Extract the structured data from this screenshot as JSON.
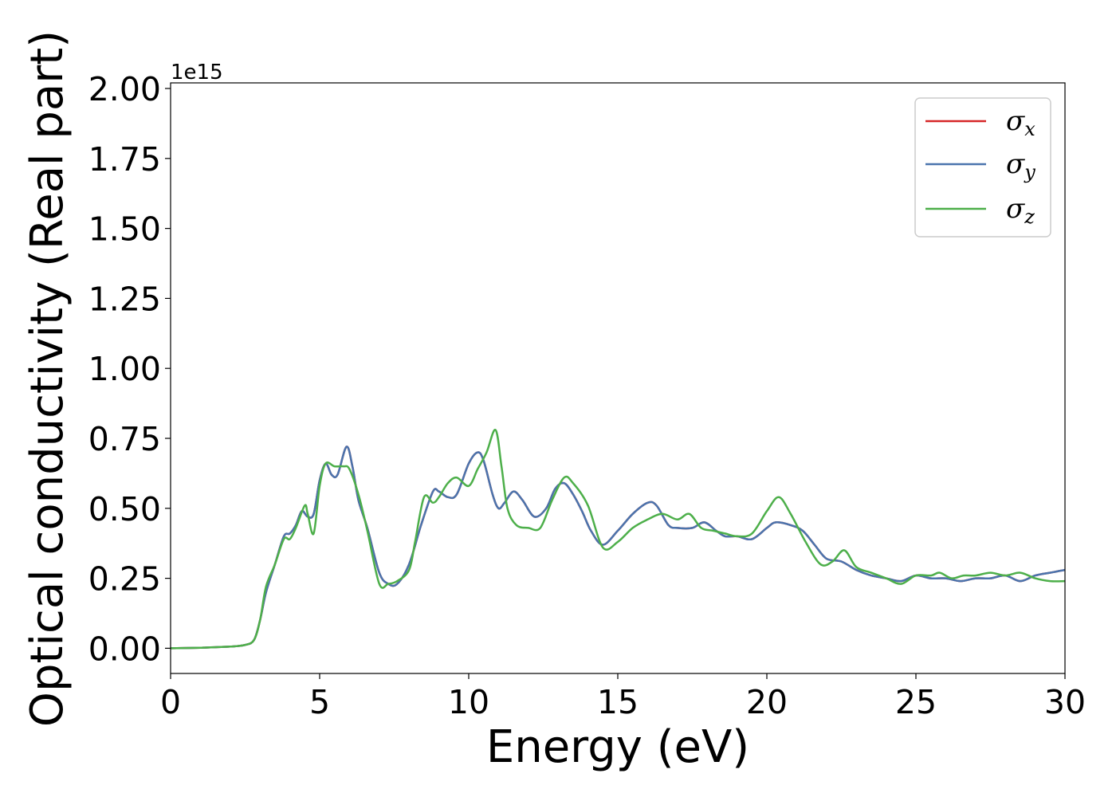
{
  "chart_data": {
    "type": "line",
    "xlabel": "Energy (eV)",
    "ylabel": "Optical conductivity (Real part)",
    "y_offset_label": "1e15",
    "xlim": [
      0,
      30
    ],
    "ylim": [
      -0.09,
      2.02
    ],
    "x_ticks": [
      0,
      5,
      10,
      15,
      20,
      25,
      30
    ],
    "x_tick_labels": [
      "0",
      "5",
      "10",
      "15",
      "20",
      "25",
      "30"
    ],
    "y_ticks": [
      0,
      0.25,
      0.5,
      0.75,
      1.0,
      1.25,
      1.5,
      1.75,
      2.0
    ],
    "y_tick_labels": [
      "0.00",
      "0.25",
      "0.50",
      "0.75",
      "1.00",
      "1.25",
      "1.50",
      "1.75",
      "2.00"
    ],
    "grid": false,
    "legend_position": "top-right",
    "series": [
      {
        "name": "σx",
        "legend_symbol": "σ",
        "legend_subscript": "x",
        "color": "#d62728",
        "x": [
          0,
          1,
          2,
          2.5,
          2.8,
          3.0,
          3.2,
          3.5,
          3.8,
          4.0,
          4.2,
          4.4,
          4.6,
          4.8,
          5.0,
          5.2,
          5.4,
          5.6,
          5.9,
          6.1,
          6.3,
          6.6,
          7.0,
          7.3,
          7.6,
          8.0,
          8.4,
          8.8,
          9.0,
          9.3,
          9.6,
          10.0,
          10.3,
          10.5,
          10.8,
          11.0,
          11.2,
          11.5,
          11.8,
          12.2,
          12.6,
          12.9,
          13.2,
          13.5,
          13.8,
          14.1,
          14.5,
          15.0,
          15.5,
          16.0,
          16.3,
          16.7,
          17.0,
          17.5,
          17.9,
          18.3,
          18.6,
          19.0,
          19.5,
          20.0,
          20.3,
          20.8,
          21.2,
          21.6,
          22.0,
          22.5,
          23.0,
          23.5,
          24.0,
          24.5,
          25.0,
          25.5,
          26.0,
          26.5,
          27.0,
          27.5,
          28.0,
          28.5,
          29.0,
          29.5,
          30.0
        ],
        "values": [
          0,
          0.002,
          0.006,
          0.012,
          0.03,
          0.1,
          0.2,
          0.3,
          0.4,
          0.41,
          0.44,
          0.49,
          0.47,
          0.48,
          0.6,
          0.66,
          0.62,
          0.62,
          0.72,
          0.65,
          0.53,
          0.43,
          0.27,
          0.23,
          0.23,
          0.3,
          0.44,
          0.56,
          0.56,
          0.54,
          0.55,
          0.66,
          0.7,
          0.67,
          0.55,
          0.5,
          0.52,
          0.56,
          0.53,
          0.47,
          0.5,
          0.57,
          0.59,
          0.55,
          0.49,
          0.42,
          0.37,
          0.42,
          0.48,
          0.52,
          0.51,
          0.44,
          0.43,
          0.43,
          0.45,
          0.42,
          0.4,
          0.4,
          0.39,
          0.43,
          0.45,
          0.44,
          0.42,
          0.37,
          0.32,
          0.31,
          0.28,
          0.26,
          0.25,
          0.24,
          0.26,
          0.25,
          0.25,
          0.24,
          0.25,
          0.25,
          0.26,
          0.24,
          0.26,
          0.27,
          0.28
        ]
      },
      {
        "name": "σy",
        "legend_symbol": "σ",
        "legend_subscript": "y",
        "color": "#4a74ad",
        "x": [
          0,
          1,
          2,
          2.5,
          2.8,
          3.0,
          3.2,
          3.5,
          3.8,
          4.0,
          4.2,
          4.4,
          4.6,
          4.8,
          5.0,
          5.2,
          5.4,
          5.6,
          5.9,
          6.1,
          6.3,
          6.6,
          7.0,
          7.3,
          7.6,
          8.0,
          8.4,
          8.8,
          9.0,
          9.3,
          9.6,
          10.0,
          10.3,
          10.5,
          10.8,
          11.0,
          11.2,
          11.5,
          11.8,
          12.2,
          12.6,
          12.9,
          13.2,
          13.5,
          13.8,
          14.1,
          14.5,
          15.0,
          15.5,
          16.0,
          16.3,
          16.7,
          17.0,
          17.5,
          17.9,
          18.3,
          18.6,
          19.0,
          19.5,
          20.0,
          20.3,
          20.8,
          21.2,
          21.6,
          22.0,
          22.5,
          23.0,
          23.5,
          24.0,
          24.5,
          25.0,
          25.5,
          26.0,
          26.5,
          27.0,
          27.5,
          28.0,
          28.5,
          29.0,
          29.5,
          30.0
        ],
        "values": [
          0,
          0.002,
          0.006,
          0.012,
          0.03,
          0.1,
          0.2,
          0.3,
          0.4,
          0.41,
          0.44,
          0.49,
          0.47,
          0.48,
          0.6,
          0.66,
          0.62,
          0.62,
          0.72,
          0.65,
          0.53,
          0.43,
          0.27,
          0.23,
          0.23,
          0.3,
          0.44,
          0.56,
          0.56,
          0.54,
          0.55,
          0.66,
          0.7,
          0.67,
          0.55,
          0.5,
          0.52,
          0.56,
          0.53,
          0.47,
          0.5,
          0.57,
          0.59,
          0.55,
          0.49,
          0.42,
          0.37,
          0.42,
          0.48,
          0.52,
          0.51,
          0.44,
          0.43,
          0.43,
          0.45,
          0.42,
          0.4,
          0.4,
          0.39,
          0.43,
          0.45,
          0.44,
          0.42,
          0.37,
          0.32,
          0.31,
          0.28,
          0.26,
          0.25,
          0.24,
          0.26,
          0.25,
          0.25,
          0.24,
          0.25,
          0.25,
          0.26,
          0.24,
          0.26,
          0.27,
          0.28
        ]
      },
      {
        "name": "σz",
        "legend_symbol": "σ",
        "legend_subscript": "z",
        "color": "#4daf4a",
        "x": [
          0,
          1,
          2,
          2.5,
          2.8,
          3.0,
          3.2,
          3.5,
          3.8,
          4.0,
          4.2,
          4.5,
          4.6,
          4.8,
          5.0,
          5.2,
          5.5,
          5.8,
          6.0,
          6.3,
          6.6,
          7.0,
          7.3,
          7.6,
          8.0,
          8.2,
          8.5,
          8.8,
          9.0,
          9.3,
          9.6,
          10.0,
          10.3,
          10.6,
          10.9,
          11.1,
          11.3,
          11.6,
          12.0,
          12.4,
          12.8,
          13.2,
          13.5,
          14.0,
          14.5,
          15.0,
          15.5,
          16.0,
          16.5,
          17.0,
          17.4,
          17.8,
          18.2,
          18.6,
          19.0,
          19.5,
          20.0,
          20.4,
          20.8,
          21.3,
          21.8,
          22.2,
          22.6,
          23.0,
          23.5,
          24.0,
          24.5,
          25.0,
          25.5,
          25.8,
          26.2,
          26.6,
          27.0,
          27.5,
          28.0,
          28.5,
          29.0,
          29.5,
          30.0
        ],
        "values": [
          0,
          0.002,
          0.006,
          0.012,
          0.03,
          0.1,
          0.22,
          0.3,
          0.39,
          0.39,
          0.43,
          0.51,
          0.48,
          0.41,
          0.58,
          0.66,
          0.65,
          0.65,
          0.64,
          0.55,
          0.42,
          0.23,
          0.23,
          0.24,
          0.28,
          0.38,
          0.54,
          0.52,
          0.54,
          0.59,
          0.61,
          0.58,
          0.64,
          0.7,
          0.78,
          0.65,
          0.5,
          0.44,
          0.43,
          0.43,
          0.53,
          0.61,
          0.59,
          0.51,
          0.36,
          0.38,
          0.43,
          0.46,
          0.48,
          0.46,
          0.48,
          0.43,
          0.42,
          0.41,
          0.4,
          0.41,
          0.49,
          0.54,
          0.48,
          0.38,
          0.3,
          0.31,
          0.35,
          0.29,
          0.27,
          0.25,
          0.23,
          0.26,
          0.26,
          0.27,
          0.25,
          0.26,
          0.26,
          0.27,
          0.26,
          0.27,
          0.25,
          0.24,
          0.24
        ]
      }
    ]
  }
}
